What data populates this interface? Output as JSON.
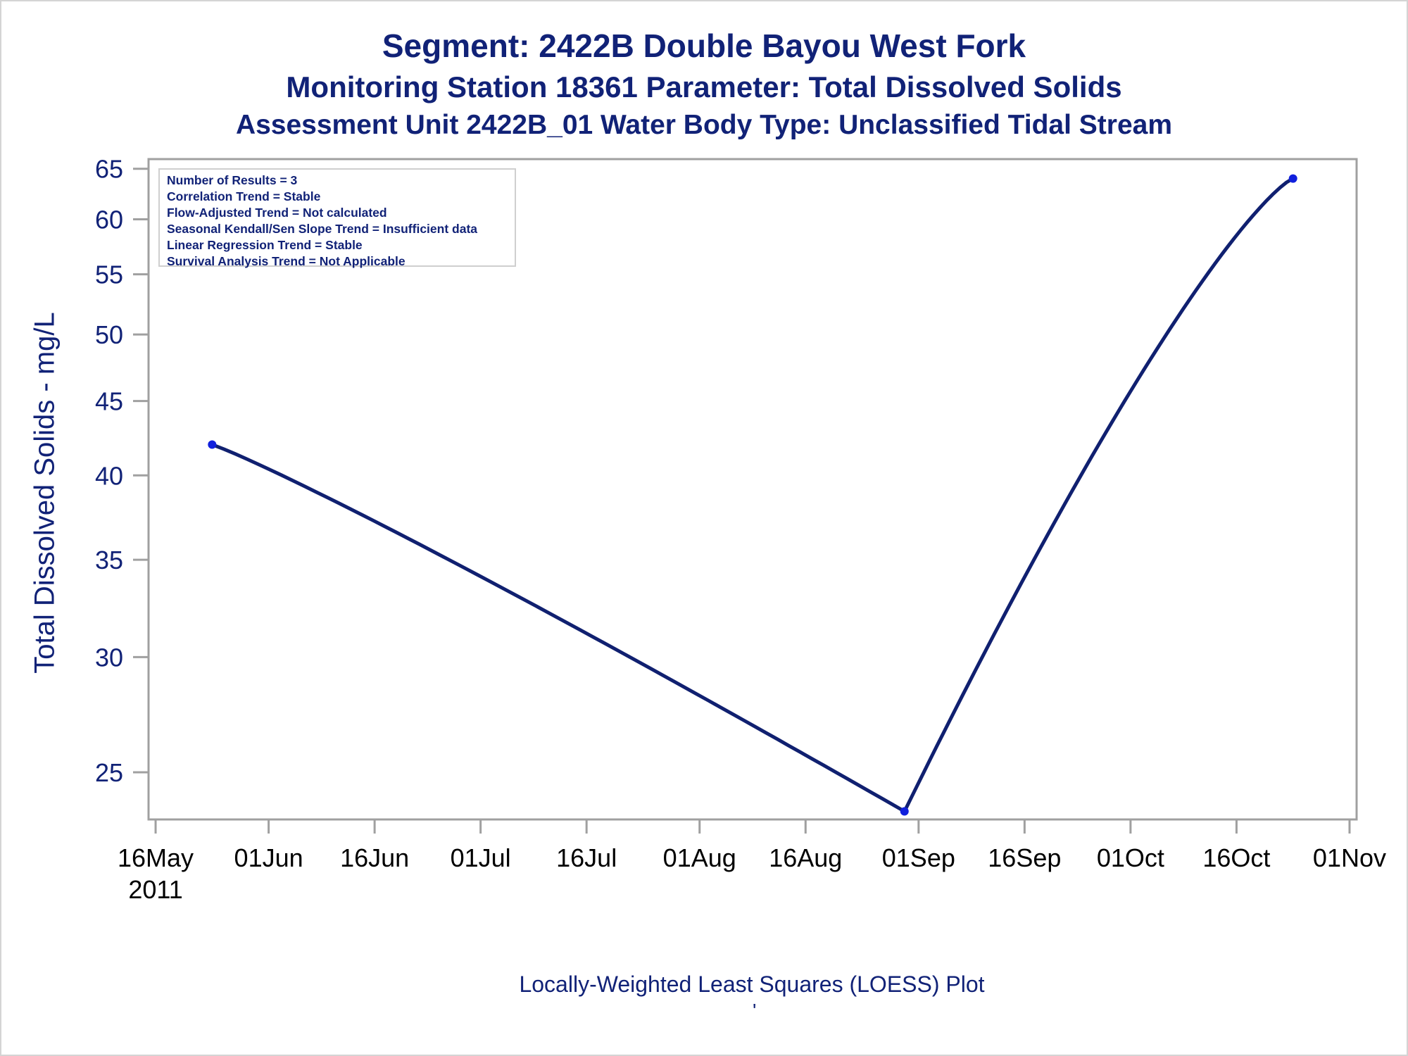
{
  "header": {
    "title": "Segment: 2422B  Double Bayou West Fork",
    "subtitle1": "Monitoring Station 18361 Parameter: Total Dissolved Solids",
    "subtitle2": "Assessment Unit 2422B_01   Water Body Type: Unclassified Tidal Stream"
  },
  "stats_box": [
    "Number of Results = 3",
    "Correlation Trend = Stable",
    "Flow-Adjusted Trend = Not calculated",
    "Seasonal Kendall/Sen Slope Trend = Insufficient data",
    "Linear Regression Trend = Stable",
    "Survival Analysis Trend = Not Applicable"
  ],
  "footer": {
    "caption": "Locally-Weighted Least Squares (LOESS) Plot",
    "mark": "'"
  },
  "colors": {
    "text": "#112277",
    "line": "#102070",
    "marker": "#1020dd",
    "axis": "#a0a0a0"
  },
  "chart_data": {
    "type": "line",
    "title": "Segment: 2422B  Double Bayou West Fork",
    "ylabel": "Total Dissolved Solids - mg/L",
    "xlabel": "",
    "y_scale": "log",
    "ylim": [
      23.2,
      66
    ],
    "yticks": [
      25,
      30,
      35,
      40,
      45,
      50,
      55,
      60,
      65
    ],
    "xlim": [
      "2011-05-15",
      "2011-11-02"
    ],
    "xticks": [
      {
        "date": "2011-05-16",
        "label": "16May",
        "label2": "2011"
      },
      {
        "date": "2011-06-01",
        "label": "01Jun",
        "label2": ""
      },
      {
        "date": "2011-06-16",
        "label": "16Jun",
        "label2": ""
      },
      {
        "date": "2011-07-01",
        "label": "01Jul",
        "label2": ""
      },
      {
        "date": "2011-07-16",
        "label": "16Jul",
        "label2": ""
      },
      {
        "date": "2011-08-01",
        "label": "01Aug",
        "label2": ""
      },
      {
        "date": "2011-08-16",
        "label": "16Aug",
        "label2": ""
      },
      {
        "date": "2011-09-01",
        "label": "01Sep",
        "label2": ""
      },
      {
        "date": "2011-09-16",
        "label": "16Sep",
        "label2": ""
      },
      {
        "date": "2011-10-01",
        "label": "01Oct",
        "label2": ""
      },
      {
        "date": "2011-10-16",
        "label": "16Oct",
        "label2": ""
      },
      {
        "date": "2011-11-01",
        "label": "01Nov",
        "label2": ""
      }
    ],
    "points": [
      {
        "x": "2011-05-24",
        "y": 42
      },
      {
        "x": "2011-08-30",
        "y": 23.5
      },
      {
        "x": "2011-10-24",
        "y": 64
      }
    ],
    "grid": false,
    "legend": "top-left"
  }
}
